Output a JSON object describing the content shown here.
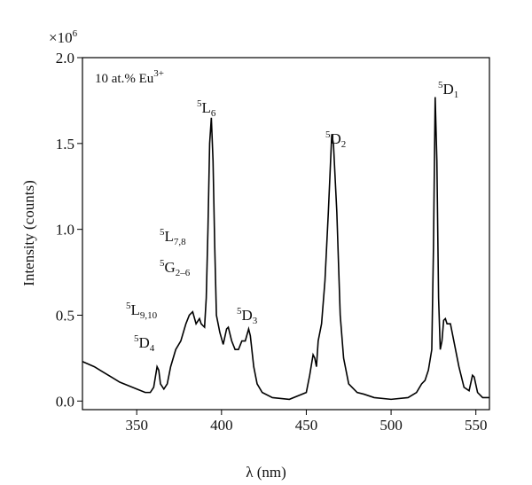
{
  "chart_data": {
    "type": "line",
    "x_label": "λ (nm)",
    "y_label": "Intensity (counts)",
    "y_scale": {
      "base": "×10",
      "sup": "6"
    },
    "xlim": [
      318,
      558
    ],
    "ylim": [
      -0.05,
      2.0
    ],
    "xticks": [
      350,
      400,
      450,
      500,
      550
    ],
    "yticks": [
      {
        "value": 0,
        "label": "0.0"
      },
      0.5,
      {
        "value": 1,
        "label": "1.0"
      },
      1.5,
      {
        "value": 2,
        "label": "2.0"
      }
    ],
    "color": "#000000",
    "x": [
      318,
      325,
      330,
      335,
      340,
      345,
      350,
      355,
      358,
      360,
      362,
      363,
      364,
      366,
      368,
      370,
      373,
      376,
      379,
      381,
      383,
      385,
      387,
      388,
      390,
      391,
      392,
      393,
      394,
      395,
      396,
      397,
      399,
      401,
      403,
      404,
      406,
      408,
      410,
      412,
      414,
      416,
      417,
      419,
      421,
      424,
      430,
      440,
      450,
      452,
      454,
      455,
      456,
      457,
      459,
      461,
      463,
      465,
      466,
      468,
      470,
      472,
      475,
      480,
      484,
      490,
      500,
      510,
      515,
      518,
      520,
      522,
      524,
      525,
      526,
      527,
      528,
      529,
      530,
      531,
      532,
      533,
      535,
      537,
      540,
      543,
      546,
      548,
      549,
      551,
      554,
      558
    ],
    "values": [
      0.23,
      0.2,
      0.17,
      0.14,
      0.11,
      0.09,
      0.07,
      0.05,
      0.05,
      0.08,
      0.2,
      0.18,
      0.1,
      0.07,
      0.1,
      0.2,
      0.3,
      0.35,
      0.45,
      0.5,
      0.52,
      0.45,
      0.48,
      0.45,
      0.43,
      0.6,
      1.0,
      1.5,
      1.65,
      1.4,
      0.9,
      0.5,
      0.4,
      0.33,
      0.42,
      0.43,
      0.35,
      0.3,
      0.3,
      0.35,
      0.35,
      0.42,
      0.38,
      0.2,
      0.1,
      0.05,
      0.02,
      0.01,
      0.05,
      0.15,
      0.27,
      0.25,
      0.2,
      0.35,
      0.45,
      0.7,
      1.1,
      1.55,
      1.5,
      1.1,
      0.5,
      0.25,
      0.1,
      0.05,
      0.04,
      0.02,
      0.01,
      0.02,
      0.05,
      0.1,
      0.12,
      0.18,
      0.3,
      0.9,
      1.77,
      1.4,
      0.6,
      0.3,
      0.35,
      0.47,
      0.48,
      0.45,
      0.45,
      0.35,
      0.2,
      0.08,
      0.06,
      0.15,
      0.14,
      0.05,
      0.02,
      0.02
    ],
    "annotations": [
      {
        "base": "10 at.% Eu",
        "sup": "3+"
      },
      {
        "sup": "5",
        "base": "L",
        "sub": "6"
      },
      {
        "sup": "5",
        "base": "D",
        "sub": "2"
      },
      {
        "sup": "5",
        "base": "D",
        "sub": "1"
      },
      {
        "sup": "5",
        "base": "L",
        "sub": "7,8"
      },
      {
        "sup": "5",
        "base": "G",
        "sub": "2–6"
      },
      {
        "sup": "5",
        "base": "L",
        "sub": "9,10"
      },
      {
        "sup": "5",
        "base": "D",
        "sub": "4"
      },
      {
        "sup": "5",
        "base": "D",
        "sub": "3"
      }
    ]
  }
}
